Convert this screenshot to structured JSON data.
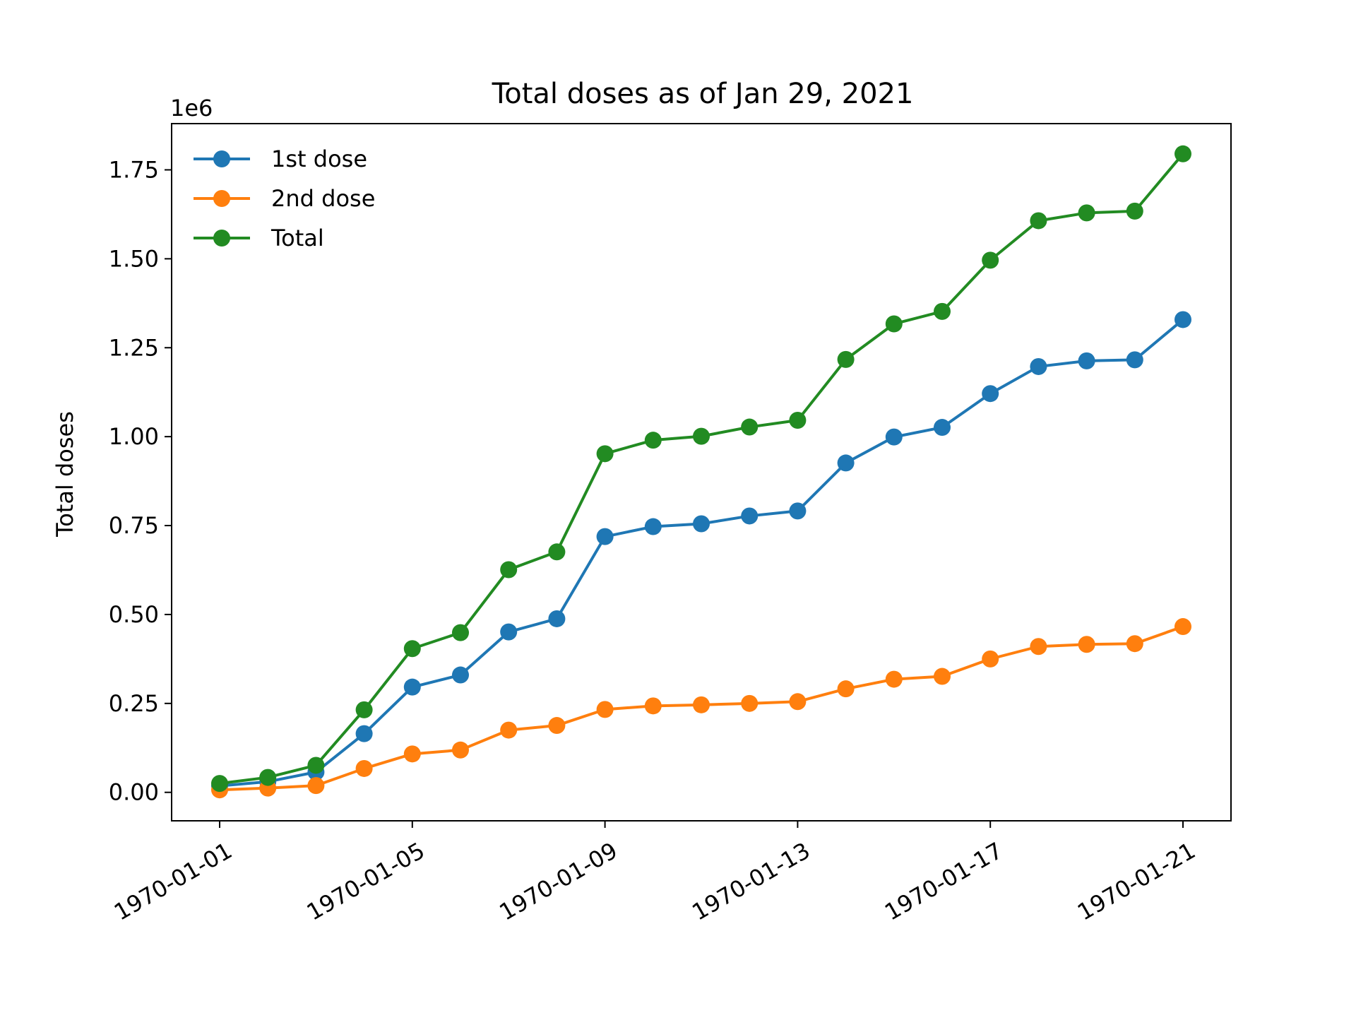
{
  "chart_data": {
    "type": "line",
    "title": "Total doses as of Jan 29, 2021",
    "xlabel": "",
    "ylabel": "Total doses",
    "y_offset_label": "1e6",
    "y_multiplier": 1000000,
    "x": [
      "1970-01-01",
      "1970-01-02",
      "1970-01-03",
      "1970-01-04",
      "1970-01-05",
      "1970-01-06",
      "1970-01-07",
      "1970-01-08",
      "1970-01-09",
      "1970-01-10",
      "1970-01-11",
      "1970-01-12",
      "1970-01-13",
      "1970-01-14",
      "1970-01-15",
      "1970-01-16",
      "1970-01-17",
      "1970-01-18",
      "1970-01-19",
      "1970-01-20",
      "1970-01-21"
    ],
    "xticks": [
      "1970-01-01",
      "1970-01-05",
      "1970-01-09",
      "1970-01-13",
      "1970-01-17",
      "1970-01-21"
    ],
    "yticks": [
      "0.00",
      "0.25",
      "0.50",
      "0.75",
      "1.00",
      "1.25",
      "1.50",
      "1.75"
    ],
    "ylim": [
      -0.08,
      1.88
    ],
    "grid": false,
    "legend_position": "top-left",
    "series": [
      {
        "name": "1st dose",
        "color": "#1f77b4",
        "values": [
          0.018,
          0.03,
          0.057,
          0.165,
          0.296,
          0.33,
          0.451,
          0.488,
          0.719,
          0.747,
          0.755,
          0.777,
          0.791,
          0.926,
          0.999,
          1.026,
          1.121,
          1.197,
          1.213,
          1.216,
          1.329
        ]
      },
      {
        "name": "2nd dose",
        "color": "#ff7f0e",
        "values": [
          0.007,
          0.012,
          0.019,
          0.067,
          0.108,
          0.119,
          0.175,
          0.188,
          0.233,
          0.243,
          0.246,
          0.25,
          0.255,
          0.291,
          0.318,
          0.326,
          0.375,
          0.41,
          0.416,
          0.418,
          0.466
        ]
      },
      {
        "name": "Total",
        "color": "#228b22",
        "values": [
          0.025,
          0.042,
          0.076,
          0.232,
          0.404,
          0.449,
          0.626,
          0.676,
          0.952,
          0.99,
          1.001,
          1.027,
          1.046,
          1.217,
          1.317,
          1.352,
          1.496,
          1.607,
          1.629,
          1.634,
          1.795
        ]
      }
    ]
  }
}
